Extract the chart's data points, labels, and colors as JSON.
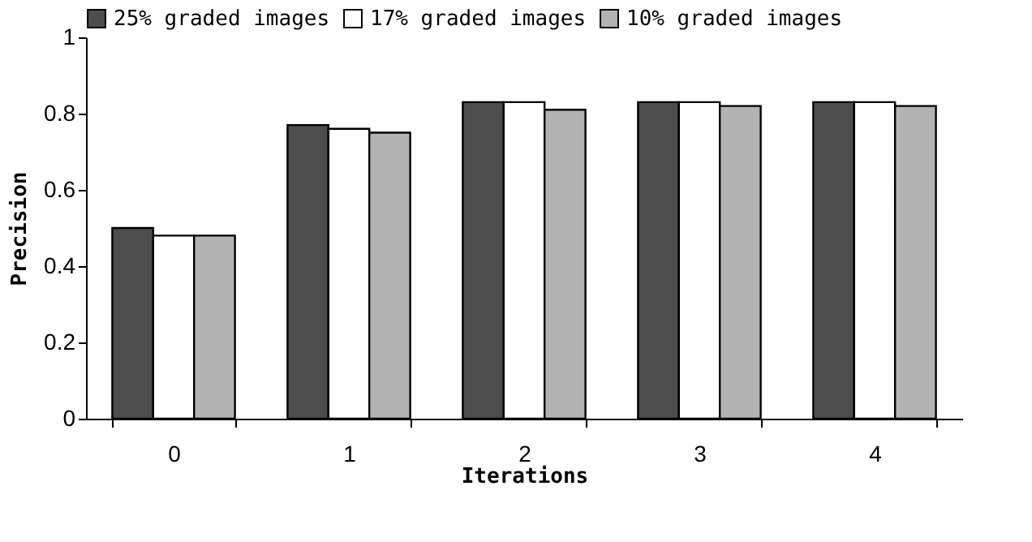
{
  "chart_data": {
    "type": "bar",
    "xlabel": "Iterations",
    "ylabel": "Precision",
    "categories": [
      "0",
      "1",
      "2",
      "3",
      "4"
    ],
    "series": [
      {
        "name": "25% graded images",
        "color": "#4d4d4d",
        "values": [
          0.5,
          0.77,
          0.83,
          0.83,
          0.83
        ]
      },
      {
        "name": "17% graded images",
        "color": "#ffffff",
        "values": [
          0.48,
          0.76,
          0.83,
          0.83,
          0.83
        ]
      },
      {
        "name": "10% graded images",
        "color": "#b3b3b3",
        "values": [
          0.48,
          0.75,
          0.81,
          0.82,
          0.82
        ]
      }
    ],
    "ylim": [
      0,
      1
    ],
    "yticks": [
      0,
      0.2,
      0.4,
      0.6,
      0.8,
      1
    ],
    "grid": false,
    "legend": "top"
  }
}
